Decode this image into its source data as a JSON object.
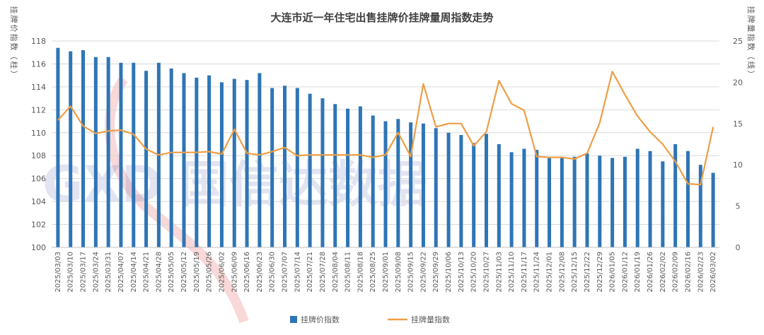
{
  "chart_data": {
    "type": "bar",
    "title": "大连市近一年住宅出售挂牌价挂牌量周指数走势",
    "ylabel_left": "挂牌价指数（柱）",
    "ylabel_right": "挂牌量指数（线）",
    "ylim_left": [
      100,
      118
    ],
    "yticks_left": [
      "100",
      "102",
      "104",
      "106",
      "108",
      "110",
      "112",
      "114",
      "116",
      "118"
    ],
    "ylim_right": [
      0,
      25
    ],
    "yticks_right": [
      "0",
      "5",
      "10",
      "15",
      "20",
      "25"
    ],
    "grid": true,
    "legend_position": "bottom",
    "watermark": "GXD 国信达数据",
    "colors": {
      "bar": "#2E75B6",
      "line": "#ED9E45",
      "grid": "#D9D9D9"
    },
    "categories": [
      "2025/03/03",
      "2025/03/10",
      "2025/03/17",
      "2025/03/24",
      "2025/03/31",
      "2025/04/07",
      "2025/04/14",
      "2025/04/21",
      "2025/04/28",
      "2025/05/05",
      "2025/05/12",
      "2025/05/19",
      "2025/05/26",
      "2025/06/02",
      "2025/06/09",
      "2025/06/16",
      "2025/06/23",
      "2025/06/30",
      "2025/07/07",
      "2025/07/14",
      "2025/07/21",
      "2025/07/28",
      "2025/08/04",
      "2025/08/11",
      "2025/08/18",
      "2025/08/25",
      "2025/09/01",
      "2025/09/08",
      "2025/09/15",
      "2025/09/22",
      "2025/09/29",
      "2025/10/06",
      "2025/10/13",
      "2025/10/20",
      "2025/10/27",
      "2025/11/03",
      "2025/11/10",
      "2025/11/17",
      "2025/11/24",
      "2025/12/01",
      "2025/12/08",
      "2025/12/15",
      "2025/12/22",
      "2025/12/29",
      "2026/01/05",
      "2026/01/12",
      "2026/01/19",
      "2026/01/26",
      "2026/02/02",
      "2026/02/09",
      "2026/02/16",
      "2026/02/23",
      "2026/03/02"
    ],
    "series": [
      {
        "name": "挂牌价指数",
        "type": "bar",
        "axis": "left",
        "values": [
          117.4,
          117.1,
          117.2,
          116.6,
          116.6,
          116.1,
          116.1,
          115.4,
          116.1,
          115.6,
          115.2,
          114.8,
          115.0,
          114.4,
          114.7,
          114.6,
          115.2,
          113.9,
          114.1,
          113.9,
          113.4,
          113.0,
          112.5,
          112.1,
          112.3,
          111.5,
          111.0,
          111.2,
          110.9,
          110.8,
          110.4,
          110.0,
          109.8,
          109.1,
          109.9,
          109.0,
          108.3,
          108.6,
          108.5,
          107.8,
          107.8,
          107.9,
          108.2,
          108.0,
          107.8,
          107.9,
          108.6,
          108.4,
          107.5,
          109.0,
          108.4,
          107.2,
          106.5
        ]
      },
      {
        "name": "挂牌量指数",
        "type": "line",
        "axis": "right",
        "values": [
          15.4,
          17.1,
          14.7,
          13.8,
          14.1,
          14.2,
          13.7,
          11.9,
          11.2,
          11.5,
          11.5,
          11.5,
          11.6,
          11.3,
          14.3,
          11.4,
          11.2,
          11.6,
          12.1,
          11.1,
          11.2,
          11.2,
          11.2,
          11.2,
          11.2,
          10.9,
          11.2,
          13.9,
          11.0,
          19.8,
          14.6,
          15.0,
          15.0,
          12.3,
          14.0,
          20.2,
          17.4,
          16.6,
          11.0,
          10.9,
          10.9,
          10.7,
          11.4,
          15.1,
          21.3,
          18.5,
          15.9,
          14.0,
          12.5,
          10.4,
          7.7,
          7.6,
          14.6
        ]
      }
    ]
  }
}
